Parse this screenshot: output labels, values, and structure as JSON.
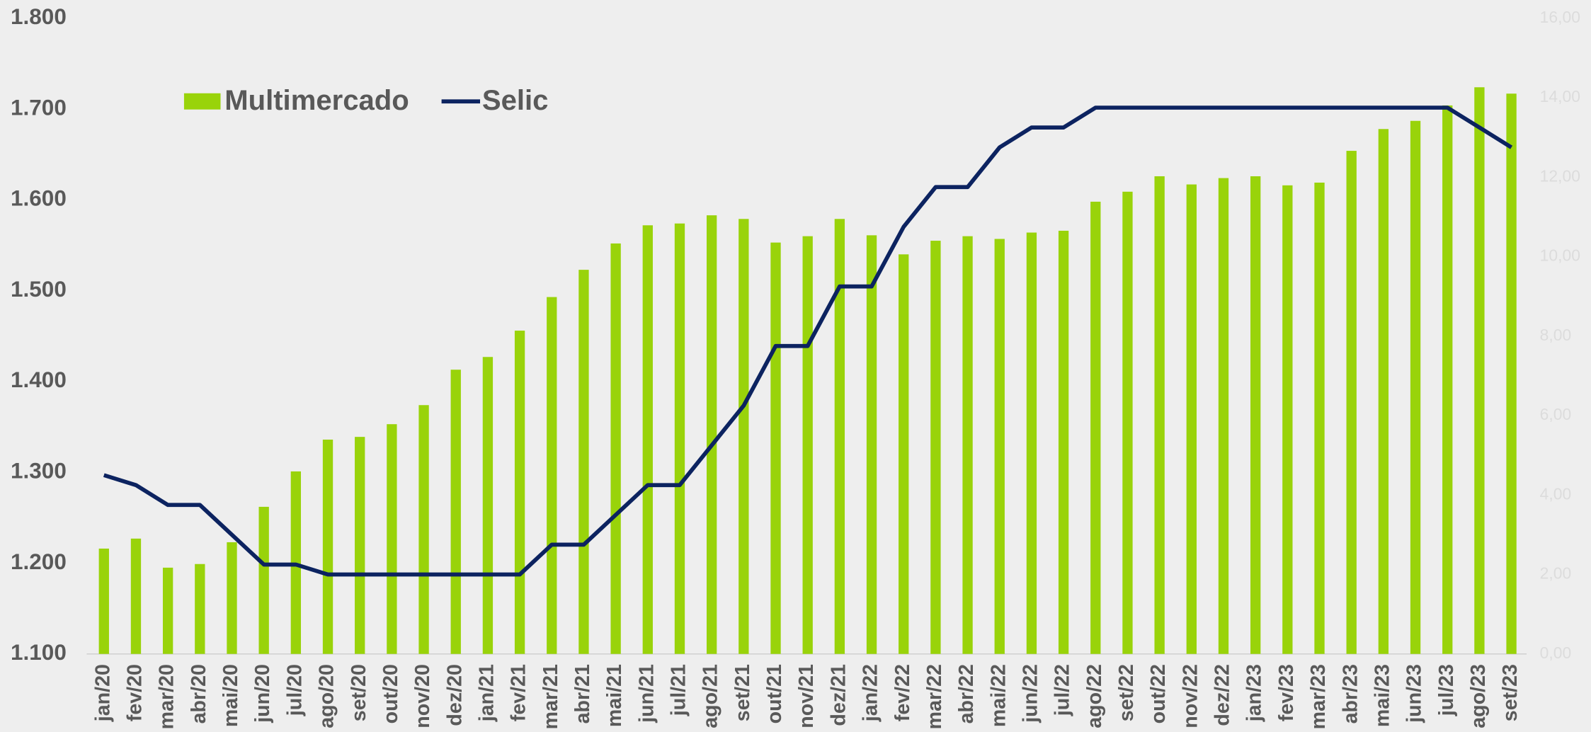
{
  "chart_data": {
    "type": "bar_line",
    "categories": [
      "jan/20",
      "fev/20",
      "mar/20",
      "abr/20",
      "mai/20",
      "jun/20",
      "jul/20",
      "ago/20",
      "set/20",
      "out/20",
      "nov/20",
      "dez/20",
      "jan/21",
      "fev/21",
      "mar/21",
      "abr/21",
      "mai/21",
      "jun/21",
      "jul/21",
      "ago/21",
      "set/21",
      "out/21",
      "nov/21",
      "dez/21",
      "jan/22",
      "fev/22",
      "mar/22",
      "abr/22",
      "mai/22",
      "jun/22",
      "jul/22",
      "ago/22",
      "set/22",
      "out/22",
      "nov/22",
      "dez/22",
      "jan/23",
      "fev/23",
      "mar/23",
      "abr/23",
      "mai/23",
      "jun/23",
      "jul/23",
      "ago/23",
      "set/23"
    ],
    "series": [
      {
        "name": "Multimercado",
        "type": "bar",
        "color": "#99d30a",
        "values": [
          1216,
          1227,
          1195,
          1199,
          1223,
          1262,
          1301,
          1336,
          1339,
          1353,
          1374,
          1413,
          1427,
          1456,
          1493,
          1523,
          1552,
          1572,
          1574,
          1583,
          1579,
          1553,
          1560,
          1579,
          1561,
          1540,
          1555,
          1560,
          1557,
          1564,
          1566,
          1598,
          1609,
          1626,
          1617,
          1624,
          1626,
          1616,
          1619,
          1654,
          1678,
          1687,
          1704,
          1724,
          1717
        ]
      },
      {
        "name": "Selic",
        "type": "line",
        "axis": "y2",
        "color": "#0c2360",
        "values": [
          4.5,
          4.25,
          3.75,
          3.75,
          3.0,
          2.25,
          2.25,
          2.0,
          2.0,
          2.0,
          2.0,
          2.0,
          2.0,
          2.0,
          2.75,
          2.75,
          3.5,
          4.25,
          4.25,
          5.25,
          6.25,
          7.75,
          7.75,
          9.25,
          9.25,
          10.75,
          11.75,
          11.75,
          12.75,
          13.25,
          13.25,
          13.75,
          13.75,
          13.75,
          13.75,
          13.75,
          13.75,
          13.75,
          13.75,
          13.75,
          13.75,
          13.75,
          13.75,
          13.25,
          12.75
        ]
      }
    ],
    "ylim": [
      1100,
      1800
    ],
    "yticks": [
      {
        "value": 1100,
        "label": "1.100"
      },
      {
        "value": 1200,
        "label": "1.200"
      },
      {
        "value": 1300,
        "label": "1.300"
      },
      {
        "value": 1400,
        "label": "1.400"
      },
      {
        "value": 1500,
        "label": "1.500"
      },
      {
        "value": 1600,
        "label": "1.600"
      },
      {
        "value": 1700,
        "label": "1.700"
      },
      {
        "value": 1800,
        "label": "1.800"
      }
    ],
    "y2lim": [
      0,
      16
    ],
    "y2ticks": [
      {
        "value": 0,
        "label": "0,00"
      },
      {
        "value": 2,
        "label": "2,00"
      },
      {
        "value": 4,
        "label": "4,00"
      },
      {
        "value": 6,
        "label": "6,00"
      },
      {
        "value": 8,
        "label": "8,00"
      },
      {
        "value": 10,
        "label": "10,00"
      },
      {
        "value": 12,
        "label": "12,00"
      },
      {
        "value": 14,
        "label": "14,00"
      },
      {
        "value": 16,
        "label": "16,00"
      }
    ],
    "legend": "top-left"
  }
}
